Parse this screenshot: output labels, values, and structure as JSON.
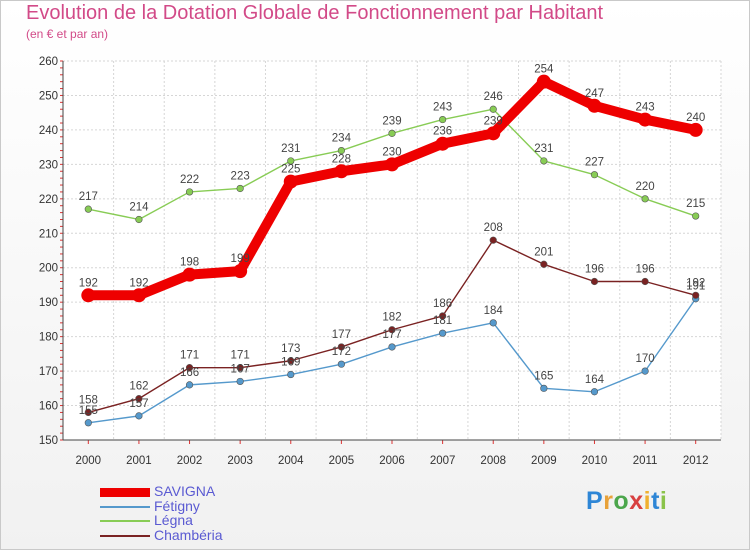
{
  "header": {
    "title": "Evolution de la Dotation Globale de Fonctionnement par Habitant",
    "subtitle": "(en € et par an)"
  },
  "logo": {
    "text": "Proxiti",
    "colors": [
      "#2e86d6",
      "#e8a23a",
      "#4ca64c",
      "#d84040",
      "#f0b030",
      "#2e86d6",
      "#8bc34a"
    ]
  },
  "chart_data": {
    "type": "line",
    "x": [
      "2000",
      "2001",
      "2002",
      "2003",
      "2004",
      "2005",
      "2006",
      "2007",
      "2008",
      "2009",
      "2010",
      "2011",
      "2012"
    ],
    "ylim": [
      150,
      260
    ],
    "yticks": [
      150,
      160,
      170,
      180,
      190,
      200,
      210,
      220,
      230,
      240,
      250,
      260
    ],
    "grid": true,
    "legend_position": "bottom-left",
    "series": [
      {
        "name": "SAVIGNA",
        "color": "#ee0000",
        "thick": true,
        "values": [
          192,
          192,
          198,
          199,
          225,
          228,
          230,
          236,
          239,
          254,
          247,
          243,
          240
        ]
      },
      {
        "name": "Fétigny",
        "color": "#5599cc",
        "thick": false,
        "values": [
          155,
          157,
          166,
          167,
          169,
          172,
          177,
          181,
          184,
          165,
          164,
          170,
          191
        ]
      },
      {
        "name": "Légna",
        "color": "#88cc55",
        "thick": false,
        "values": [
          217,
          214,
          222,
          223,
          231,
          234,
          239,
          243,
          246,
          231,
          227,
          220,
          215
        ]
      },
      {
        "name": "Chambéria",
        "color": "#7a2222",
        "thick": false,
        "values": [
          158,
          162,
          171,
          171,
          173,
          177,
          182,
          186,
          208,
          201,
          196,
          196,
          192
        ]
      }
    ]
  }
}
